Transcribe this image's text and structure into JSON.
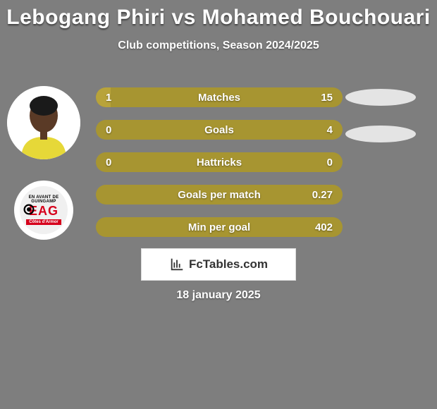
{
  "background_color": "#7e7e7e",
  "title": "Lebogang Phiri vs Mohamed Bouchouari",
  "title_color": "#ffffff",
  "title_fontsize": 30,
  "subtitle": "Club competitions, Season 2024/2025",
  "subtitle_color": "#ffffff",
  "player": {
    "avatar_bg": "#ffffff",
    "skin": "#5a3a26",
    "shirt": "#e6d838"
  },
  "team": {
    "badge_bg": "#ffffff",
    "inner_bg": "#f0f0f0",
    "top_text": "EN AVANT DE GUINGAMP",
    "top_text_color": "#000000",
    "big_text": "EAG",
    "big_color": "#d6001c",
    "bottom_text": "Côtes d'Armor",
    "bottom_bg": "#d6001c",
    "bottom_color": "#ffffff",
    "spiral_color": "#000000"
  },
  "bars": {
    "track_color": "#a79531",
    "fill_color": "#b8a33a",
    "text_color": "#ffffff",
    "rows": [
      {
        "label": "Matches",
        "left": "1",
        "right": "15",
        "fill_pct": 6
      },
      {
        "label": "Goals",
        "left": "0",
        "right": "4",
        "fill_pct": 0
      },
      {
        "label": "Hattricks",
        "left": "0",
        "right": "0",
        "fill_pct": 0
      },
      {
        "label": "Goals per match",
        "left": "",
        "right": "0.27",
        "fill_pct": 0
      },
      {
        "label": "Min per goal",
        "left": "",
        "right": "402",
        "fill_pct": 0
      }
    ]
  },
  "ellipses": {
    "color": "#e4e4e4",
    "count": 2
  },
  "brand": {
    "box_bg": "#ffffff",
    "border": "#dcdcdc",
    "text": "FcTables.com",
    "text_color": "#333333",
    "icon_color": "#333333"
  },
  "date": "18 january 2025",
  "date_color": "#ffffff"
}
